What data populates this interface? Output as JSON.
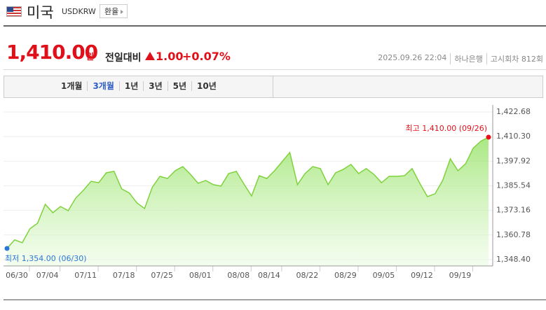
{
  "header": {
    "country": "미국",
    "code": "USDKRW",
    "button": "환율"
  },
  "price": {
    "value": "1,410.00",
    "unit": "원",
    "change_label": "전일대비",
    "change": "1.00",
    "change_pct": "+0.07%"
  },
  "info": {
    "datetime": "2025.09.26 22:04",
    "bank": "하나은행",
    "round": "고시회차 812회"
  },
  "tabs": [
    "1개월",
    "3개월",
    "1년",
    "3년",
    "5년",
    "10년"
  ],
  "active_tab": 1,
  "chart_data": {
    "type": "area",
    "categories": [
      "06/30",
      null,
      null,
      null,
      "07/04",
      null,
      null,
      null,
      null,
      "07/11",
      null,
      null,
      null,
      null,
      "07/18",
      null,
      null,
      null,
      null,
      "07/25",
      null,
      null,
      null,
      null,
      "08/01",
      null,
      null,
      null,
      null,
      "08/08",
      null,
      null,
      null,
      "08/14",
      null,
      null,
      null,
      null,
      "08/22",
      null,
      null,
      null,
      null,
      "08/29",
      null,
      null,
      null,
      null,
      "09/05",
      null,
      null,
      null,
      null,
      "09/12",
      null,
      null,
      null,
      null,
      "09/19",
      null,
      null,
      null,
      null,
      null
    ],
    "series": [
      {
        "name": "USDKRW",
        "color": "#7fd23c",
        "values": [
          1354.0,
          1358.3,
          1356.9,
          1363.9,
          1366.7,
          1376.2,
          1372.0,
          1375.1,
          1373.0,
          1379.4,
          1383.3,
          1387.8,
          1387.1,
          1392.1,
          1392.8,
          1384.0,
          1381.9,
          1376.9,
          1374.1,
          1384.7,
          1390.3,
          1389.2,
          1393.1,
          1395.2,
          1391.3,
          1386.8,
          1388.2,
          1386.1,
          1385.4,
          1391.7,
          1392.8,
          1386.4,
          1380.4,
          1390.6,
          1389.2,
          1393.1,
          1397.7,
          1402.3,
          1386.1,
          1391.7,
          1395.2,
          1394.2,
          1386.1,
          1392.1,
          1393.8,
          1396.3,
          1391.7,
          1394.2,
          1391.3,
          1387.1,
          1390.3,
          1390.3,
          1390.6,
          1394.2,
          1386.8,
          1380.1,
          1381.5,
          1388.2,
          1399.1,
          1393.1,
          1396.6,
          1404.5,
          1408.0,
          1410.0
        ]
      }
    ],
    "ylim": [
      1345.2,
      1423.4
    ],
    "yticks": [
      {
        "value": 1348.4,
        "label": "1,348.40"
      },
      {
        "value": 1360.78,
        "label": "1,360.78"
      },
      {
        "value": 1373.16,
        "label": "1,373.16"
      },
      {
        "value": 1385.54,
        "label": "1,385.54"
      },
      {
        "value": 1397.92,
        "label": "1,397.92"
      },
      {
        "value": 1410.3,
        "label": "1,410.30"
      },
      {
        "value": 1422.68,
        "label": "1,422.68"
      }
    ],
    "grid": true,
    "max_label": "최고 1,410.00 (09/26)",
    "max_color": "#e8101a",
    "min_label": "최저 1,354.00 (06/30)",
    "min_color": "#2a78d6"
  }
}
